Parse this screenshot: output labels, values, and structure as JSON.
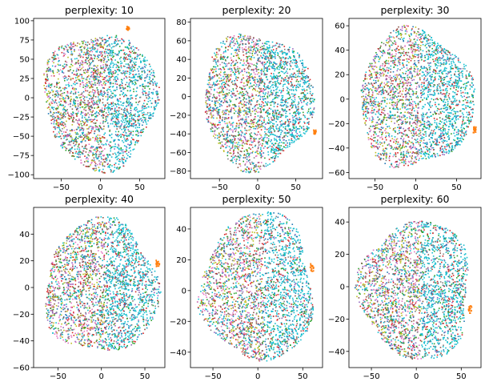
{
  "figure": {
    "colors": [
      "#1f77b4",
      "#ff7f0e",
      "#2ca02c",
      "#d62728",
      "#9467bd",
      "#8c564b",
      "#e377c2",
      "#7f7f7f",
      "#bcbd22",
      "#17becf"
    ]
  },
  "chart_data": [
    {
      "type": "scatter",
      "title": "perplexity: 10",
      "xlim": [
        -85,
        82
      ],
      "ylim": [
        -105,
        103
      ],
      "xticks": [
        -50,
        0,
        50
      ],
      "yticks": [
        -100,
        -75,
        -50,
        -25,
        0,
        25,
        50,
        75,
        100
      ],
      "cluster": {
        "cx": 0,
        "cy": -3,
        "rx": 72,
        "ry": 88
      },
      "outlier": {
        "x": 35,
        "y": 90
      },
      "grid": false
    },
    {
      "type": "scatter",
      "title": "perplexity: 20",
      "xlim": [
        -88,
        85
      ],
      "ylim": [
        -88,
        84
      ],
      "xticks": [
        -50,
        0,
        50
      ],
      "yticks": [
        -80,
        -60,
        -40,
        -20,
        0,
        20,
        40,
        60,
        80
      ],
      "cluster": {
        "cx": 0,
        "cy": -4,
        "rx": 72,
        "ry": 72
      },
      "outlier": {
        "x": 75,
        "y": -38
      },
      "grid": false
    },
    {
      "type": "scatter",
      "title": "perplexity: 30",
      "xlim": [
        -82,
        80
      ],
      "ylim": [
        -65,
        66
      ],
      "xticks": [
        -50,
        0,
        50
      ],
      "yticks": [
        -60,
        -40,
        -20,
        0,
        20,
        40,
        60
      ],
      "cluster": {
        "cx": 0,
        "cy": 0,
        "rx": 70,
        "ry": 56
      },
      "outlier": {
        "x": 72,
        "y": -25
      },
      "grid": false
    },
    {
      "type": "scatter",
      "title": "perplexity: 40",
      "xlim": [
        -78,
        73
      ],
      "ylim": [
        -60,
        60
      ],
      "xticks": [
        -50,
        0,
        50
      ],
      "yticks": [
        -60,
        -40,
        -20,
        0,
        20,
        40
      ],
      "cluster": {
        "cx": 0,
        "cy": 0,
        "rx": 65,
        "ry": 50
      },
      "outlier": {
        "x": 65,
        "y": 18
      },
      "grid": false
    },
    {
      "type": "scatter",
      "title": "perplexity: 50",
      "xlim": [
        -75,
        72
      ],
      "ylim": [
        -50,
        54
      ],
      "xticks": [
        -50,
        0,
        50
      ],
      "yticks": [
        -40,
        -20,
        0,
        20,
        40
      ],
      "cluster": {
        "cx": 0,
        "cy": 2,
        "rx": 62,
        "ry": 48
      },
      "outlier": {
        "x": 60,
        "y": 15
      },
      "grid": false
    },
    {
      "type": "scatter",
      "title": "perplexity: 60",
      "xlim": [
        -75,
        72
      ],
      "ylim": [
        -50,
        49
      ],
      "xticks": [
        -50,
        0,
        50
      ],
      "yticks": [
        -40,
        -20,
        0,
        20,
        40
      ],
      "cluster": {
        "cx": 0,
        "cy": -2,
        "rx": 62,
        "ry": 43
      },
      "outlier": {
        "x": 60,
        "y": -14
      },
      "grid": false
    }
  ]
}
